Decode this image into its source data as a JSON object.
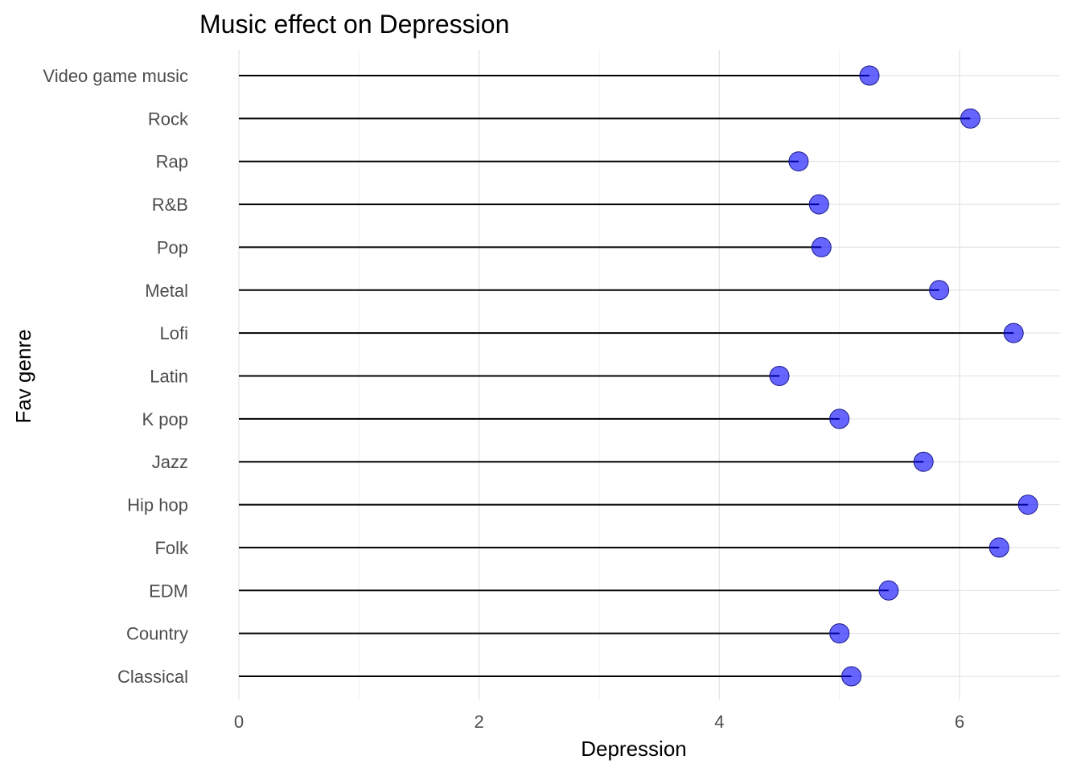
{
  "chart_data": {
    "type": "lollipop",
    "title": "Music effect on Depression",
    "xlabel": "Depression",
    "ylabel": "Fav genre",
    "xlim": [
      0,
      6.6
    ],
    "x_ticks": [
      0,
      2,
      4,
      6
    ],
    "grid": true,
    "point_color": "#0000ff",
    "point_opacity": 0.6,
    "stem_color": "#000000",
    "categories": [
      "Classical",
      "Country",
      "EDM",
      "Folk",
      "Hip hop",
      "Jazz",
      "K pop",
      "Latin",
      "Lofi",
      "Metal",
      "Pop",
      "R&B",
      "Rap",
      "Rock",
      "Video game music"
    ],
    "values": [
      5.1,
      5.0,
      5.41,
      6.33,
      6.57,
      5.7,
      5.0,
      4.5,
      6.45,
      5.83,
      4.85,
      4.83,
      4.66,
      6.09,
      5.25
    ]
  }
}
